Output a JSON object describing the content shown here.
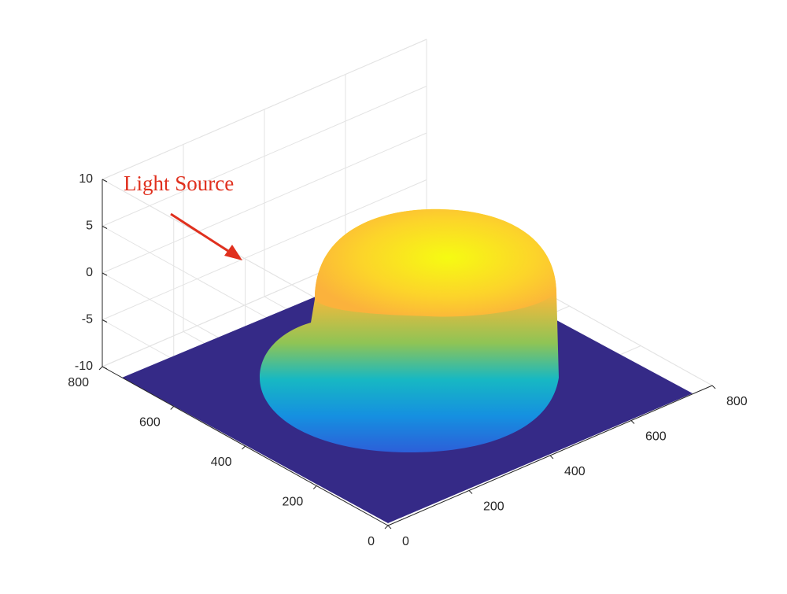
{
  "chart_data": {
    "type": "surface",
    "annotation": "Light Source",
    "xlim": [
      0,
      800
    ],
    "xticks": [
      0,
      200,
      400,
      600,
      800
    ],
    "ylim": [
      0,
      800
    ],
    "yticks": [
      0,
      200,
      400,
      600,
      800
    ],
    "zlim": [
      -10,
      10
    ],
    "zticks": [
      -10,
      -5,
      0,
      5,
      10
    ],
    "grid": true
  }
}
